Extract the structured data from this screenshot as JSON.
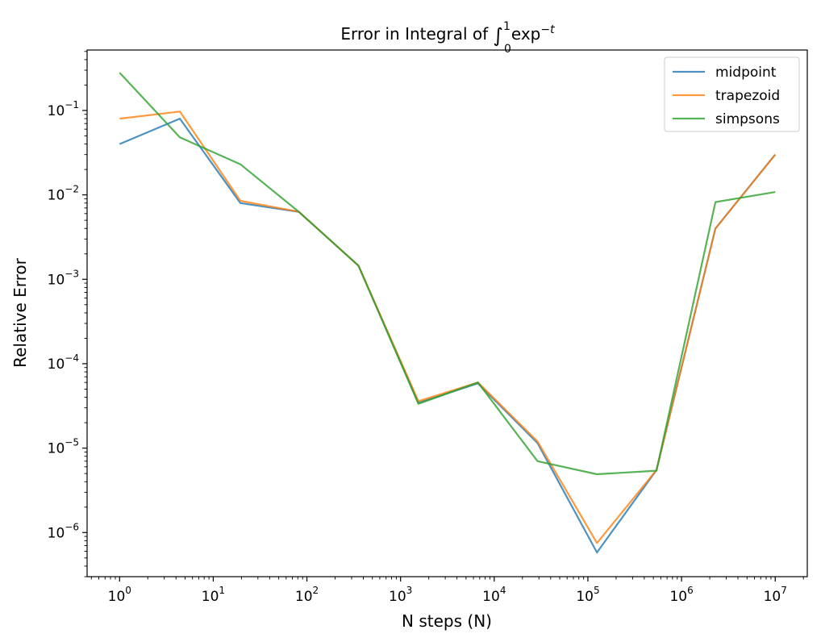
{
  "chart_data": {
    "type": "line",
    "title": {
      "prefix": "Error in Integral of ",
      "integral_sign": "∫",
      "upper_limit": "1",
      "lower_limit": "0",
      "func": "exp",
      "exponent": "−t"
    },
    "xlabel": "N steps (N)",
    "ylabel": "Relative Error",
    "xscale": "log",
    "yscale": "log",
    "xlim": [
      0.45,
      22000000
    ],
    "ylim": [
      3e-07,
      0.52
    ],
    "grid": false,
    "legend_position": "top-right",
    "x": [
      1,
      4.4,
      19.5,
      82,
      355,
      1550,
      6700,
      29000,
      125000,
      540000,
      2300000,
      10000000
    ],
    "xticks": [
      {
        "value": 1,
        "base": "10",
        "exp": "0"
      },
      {
        "value": 10,
        "base": "10",
        "exp": "1"
      },
      {
        "value": 100,
        "base": "10",
        "exp": "2"
      },
      {
        "value": 1000,
        "base": "10",
        "exp": "3"
      },
      {
        "value": 10000,
        "base": "10",
        "exp": "4"
      },
      {
        "value": 100000,
        "base": "10",
        "exp": "5"
      },
      {
        "value": 1000000,
        "base": "10",
        "exp": "6"
      },
      {
        "value": 10000000,
        "base": "10",
        "exp": "7"
      }
    ],
    "yticks": [
      {
        "value": 0.1,
        "base": "10",
        "exp": "−1"
      },
      {
        "value": 0.01,
        "base": "10",
        "exp": "−2"
      },
      {
        "value": 0.001,
        "base": "10",
        "exp": "−3"
      },
      {
        "value": 0.0001,
        "base": "10",
        "exp": "−4"
      },
      {
        "value": 1e-05,
        "base": "10",
        "exp": "−5"
      },
      {
        "value": 1e-06,
        "base": "10",
        "exp": "−6"
      }
    ],
    "series": [
      {
        "name": "midpoint",
        "color": "#1f77b4",
        "values": [
          0.04,
          0.08,
          0.008,
          0.0063,
          0.00145,
          3.45e-05,
          5.85e-05,
          1.15e-05,
          5.8e-07,
          5.5e-06,
          0.004,
          0.03
        ]
      },
      {
        "name": "trapezoid",
        "color": "#ff7f0e",
        "values": [
          0.08,
          0.097,
          0.0085,
          0.0063,
          0.00145,
          3.6e-05,
          6e-05,
          1.2e-05,
          7.5e-07,
          5.5e-06,
          0.004,
          0.03
        ]
      },
      {
        "name": "simpsons",
        "color": "#2ca02c",
        "values": [
          0.28,
          0.048,
          0.023,
          0.0063,
          0.00145,
          3.35e-05,
          6e-05,
          7e-06,
          4.9e-06,
          5.4e-06,
          0.0082,
          0.0108
        ]
      }
    ]
  }
}
